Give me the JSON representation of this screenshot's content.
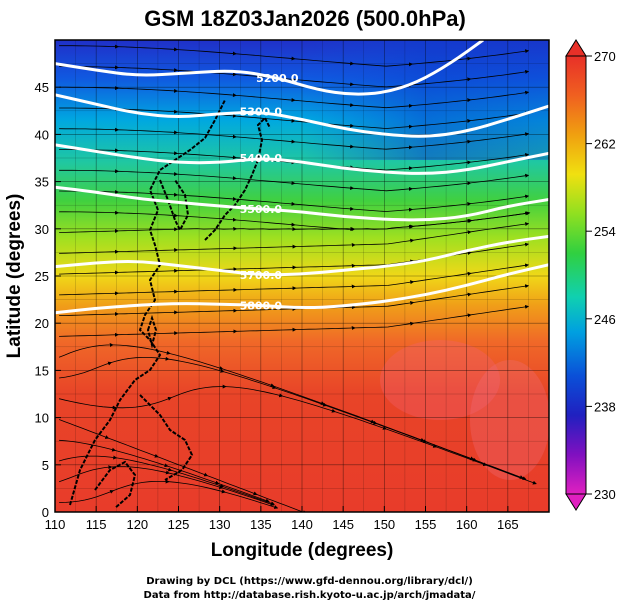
{
  "title": "GSM 18Z03Jan2026 (500.0hPa)",
  "xaxis": {
    "label": "Longitude (degrees)",
    "range": [
      110,
      170
    ],
    "ticks": [
      110,
      115,
      120,
      125,
      130,
      135,
      140,
      145,
      150,
      155,
      160,
      165
    ]
  },
  "yaxis": {
    "label": "Latitude (degrees)",
    "range": [
      0,
      50
    ],
    "ticks": [
      0,
      5,
      10,
      15,
      20,
      25,
      30,
      35,
      40,
      45
    ]
  },
  "colorbar": {
    "range": [
      230,
      270
    ],
    "ticks": [
      230,
      238,
      246,
      254,
      262,
      270
    ],
    "colors": [
      "#e020c0",
      "#8010c0",
      "#2020c0",
      "#0070e0",
      "#00b8e0",
      "#10d0a0",
      "#30d040",
      "#90e020",
      "#f0e010",
      "#f0a010",
      "#f06020",
      "#e83028"
    ]
  },
  "contours": [
    {
      "label": "5200.0",
      "points": [
        [
          110,
          47.5
        ],
        [
          115,
          46.8
        ],
        [
          120,
          46.2
        ],
        [
          126,
          46.5
        ],
        [
          132,
          46.8
        ],
        [
          137,
          46.0
        ],
        [
          142,
          44.7
        ],
        [
          146,
          44.2
        ],
        [
          150,
          44.4
        ],
        [
          154,
          45.5
        ],
        [
          158,
          47.5
        ],
        [
          162,
          50
        ]
      ]
    },
    {
      "label": "5300.0",
      "points": [
        [
          110,
          44.2
        ],
        [
          115,
          43.2
        ],
        [
          120,
          42.2
        ],
        [
          125,
          41.8
        ],
        [
          130,
          42.2
        ],
        [
          135,
          42.4
        ],
        [
          140,
          41.6
        ],
        [
          145,
          40.6
        ],
        [
          150,
          40.0
        ],
        [
          155,
          39.7
        ],
        [
          160,
          40.3
        ],
        [
          165,
          41.6
        ],
        [
          170,
          43.0
        ]
      ]
    },
    {
      "label": "5400.0",
      "points": [
        [
          110,
          38.9
        ],
        [
          115,
          38.2
        ],
        [
          120,
          37.5
        ],
        [
          125,
          37.0
        ],
        [
          130,
          37.0
        ],
        [
          135,
          37.5
        ],
        [
          140,
          37.1
        ],
        [
          145,
          36.4
        ],
        [
          150,
          36.0
        ],
        [
          155,
          35.8
        ],
        [
          160,
          36.2
        ],
        [
          165,
          37.1
        ],
        [
          170,
          38.0
        ]
      ]
    },
    {
      "label": "5500.0",
      "points": [
        [
          110,
          34.4
        ],
        [
          115,
          33.9
        ],
        [
          120,
          33.2
        ],
        [
          125,
          32.8
        ],
        [
          130,
          32.4
        ],
        [
          135,
          32.1
        ],
        [
          140,
          31.8
        ],
        [
          145,
          31.3
        ],
        [
          150,
          31.0
        ],
        [
          155,
          30.9
        ],
        [
          160,
          31.3
        ],
        [
          165,
          32.4
        ],
        [
          170,
          33.1
        ]
      ]
    },
    {
      "label": "5700.0",
      "points": [
        [
          110,
          26.0
        ],
        [
          115,
          26.4
        ],
        [
          120,
          26.6
        ],
        [
          125,
          26.1
        ],
        [
          130,
          25.6
        ],
        [
          135,
          25.1
        ],
        [
          140,
          25.2
        ],
        [
          145,
          25.6
        ],
        [
          150,
          26.0
        ],
        [
          155,
          26.6
        ],
        [
          160,
          27.7
        ],
        [
          165,
          28.6
        ],
        [
          170,
          29.2
        ]
      ]
    },
    {
      "label": "5800.0",
      "points": [
        [
          110,
          21.1
        ],
        [
          115,
          21.6
        ],
        [
          120,
          21.9
        ],
        [
          125,
          22.1
        ],
        [
          130,
          22.0
        ],
        [
          135,
          21.9
        ],
        [
          140,
          21.6
        ],
        [
          145,
          21.8
        ],
        [
          150,
          22.3
        ],
        [
          155,
          23.0
        ],
        [
          160,
          24.0
        ],
        [
          165,
          25.2
        ],
        [
          170,
          26.2
        ]
      ]
    }
  ],
  "credits": [
    "Drawing by DCL (https://www.gfd-dennou.org/library/dcl/)",
    "Data from http://database.rish.kyoto-u.ac.jp/arch/jmadata/"
  ]
}
